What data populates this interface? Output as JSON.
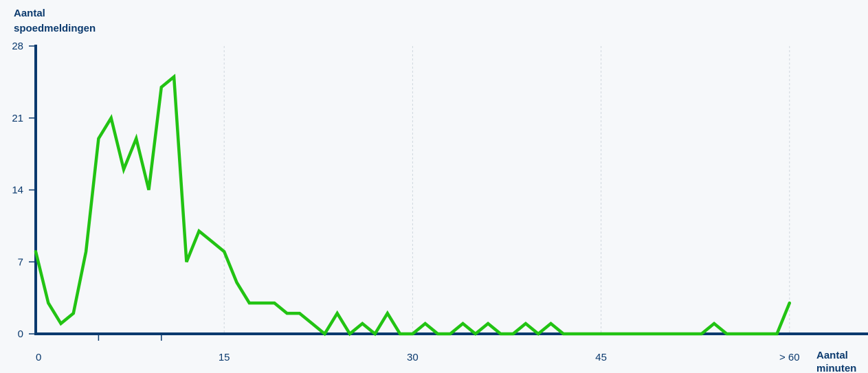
{
  "chart_data": {
    "type": "line",
    "title": "",
    "ylabel_lines": [
      "Aantal",
      "spoedmeldingen"
    ],
    "xlabel_lines": [
      "Aantal",
      "minuten"
    ],
    "ylim": [
      0,
      28
    ],
    "xlim": [
      0,
      65
    ],
    "y_ticks": [
      0,
      7,
      14,
      21,
      28
    ],
    "x_ticks": [
      {
        "value": 0,
        "label": "0"
      },
      {
        "value": 15,
        "label": "15"
      },
      {
        "value": 30,
        "label": "30"
      },
      {
        "value": 45,
        "label": "45"
      },
      {
        "value": 60,
        "label": "> 60"
      }
    ],
    "x_minor_ticks": [
      5,
      10
    ],
    "grid_x": [
      15,
      30,
      45,
      60
    ],
    "line_color": "#22c313",
    "axis_color": "#0b3a6e",
    "grid_color": "#cfd6dd",
    "series": [
      {
        "x": [
          0,
          1,
          2,
          3,
          4,
          5,
          6,
          7,
          8,
          9,
          10,
          11,
          12,
          13,
          14,
          15,
          16,
          17,
          18,
          19,
          20,
          21,
          22,
          23,
          24,
          25,
          26,
          27,
          28,
          29,
          30,
          31,
          32,
          33,
          34,
          35,
          36,
          37,
          38,
          39,
          40,
          41,
          42,
          43,
          44,
          45,
          46,
          47,
          48,
          49,
          50,
          51,
          52,
          53,
          54,
          55,
          56,
          57,
          58,
          59,
          60
        ],
        "values": [
          8,
          3,
          1,
          2,
          8,
          19,
          21,
          16,
          19,
          14,
          24,
          25,
          7,
          10,
          9,
          8,
          5,
          3,
          3,
          3,
          2,
          2,
          1,
          0,
          2,
          0,
          1,
          0,
          2,
          0,
          0,
          1,
          0,
          0,
          1,
          0,
          1,
          0,
          0,
          1,
          0,
          1,
          0,
          0,
          0,
          0,
          0,
          0,
          0,
          0,
          0,
          0,
          0,
          0,
          1,
          0,
          0,
          0,
          0,
          0,
          3
        ]
      }
    ]
  }
}
